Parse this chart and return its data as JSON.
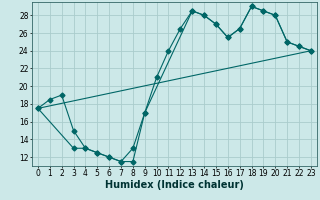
{
  "xlabel": "Humidex (Indice chaleur)",
  "background_color": "#cce8e8",
  "grid_color": "#aacccc",
  "line_color": "#006666",
  "xlim": [
    -0.5,
    23.5
  ],
  "ylim": [
    11.0,
    29.5
  ],
  "yticks": [
    12,
    14,
    16,
    18,
    20,
    22,
    24,
    26,
    28
  ],
  "xticks": [
    0,
    1,
    2,
    3,
    4,
    5,
    6,
    7,
    8,
    9,
    10,
    11,
    12,
    13,
    14,
    15,
    16,
    17,
    18,
    19,
    20,
    21,
    22,
    23
  ],
  "line1_x": [
    0,
    1,
    2,
    3,
    4,
    5,
    6,
    7,
    8,
    9,
    10,
    11,
    12,
    13,
    14,
    15,
    16,
    17,
    18,
    19,
    20,
    21,
    22,
    23
  ],
  "line1_y": [
    17.5,
    18.5,
    19.0,
    15.0,
    13.0,
    12.5,
    12.0,
    11.5,
    11.5,
    17.0,
    21.0,
    24.0,
    26.5,
    28.5,
    28.0,
    27.0,
    25.5,
    26.5,
    29.0,
    28.5,
    28.0,
    25.0,
    24.5,
    24.0
  ],
  "line2_x": [
    0,
    3,
    4,
    5,
    6,
    7,
    8,
    9,
    13,
    14,
    15,
    16,
    17,
    18,
    19,
    20,
    21,
    22,
    23
  ],
  "line2_y": [
    17.5,
    13.0,
    13.0,
    12.5,
    12.0,
    11.5,
    13.0,
    17.0,
    28.5,
    28.0,
    27.0,
    25.5,
    26.5,
    29.0,
    28.5,
    28.0,
    25.0,
    24.5,
    24.0
  ],
  "line3_x": [
    0,
    23
  ],
  "line3_y": [
    17.5,
    24.0
  ],
  "marker_size": 2.5,
  "font_size_xlabel": 7,
  "font_size_ticks": 5.5
}
